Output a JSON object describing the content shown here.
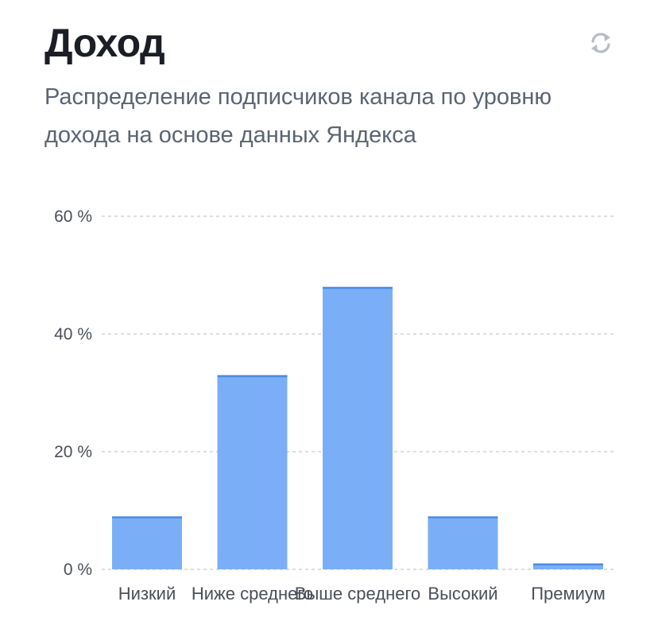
{
  "header": {
    "title": "Доход",
    "subtitle": "Распределение подписчиков канала по уровню дохода на основе данных Яндекса",
    "refresh_icon": "refresh-icon"
  },
  "colors": {
    "bar_fill": "#7aaff7",
    "bar_top": "#4d8ae6",
    "grid": "#c8cbd0",
    "icon": "#b7bcc4"
  },
  "chart_data": {
    "type": "bar",
    "categories": [
      "Низкий",
      "Ниже среднего",
      "Выше среднего",
      "Высокий",
      "Премиум"
    ],
    "values": [
      9,
      33,
      48,
      9,
      1
    ],
    "unit": "%",
    "ylim": [
      0,
      60
    ],
    "yticks": [
      0,
      20,
      40,
      60
    ],
    "ytick_labels": [
      "0 %",
      "20 %",
      "40 %",
      "60 %"
    ],
    "grid": true,
    "title": "",
    "xlabel": "",
    "ylabel": ""
  }
}
